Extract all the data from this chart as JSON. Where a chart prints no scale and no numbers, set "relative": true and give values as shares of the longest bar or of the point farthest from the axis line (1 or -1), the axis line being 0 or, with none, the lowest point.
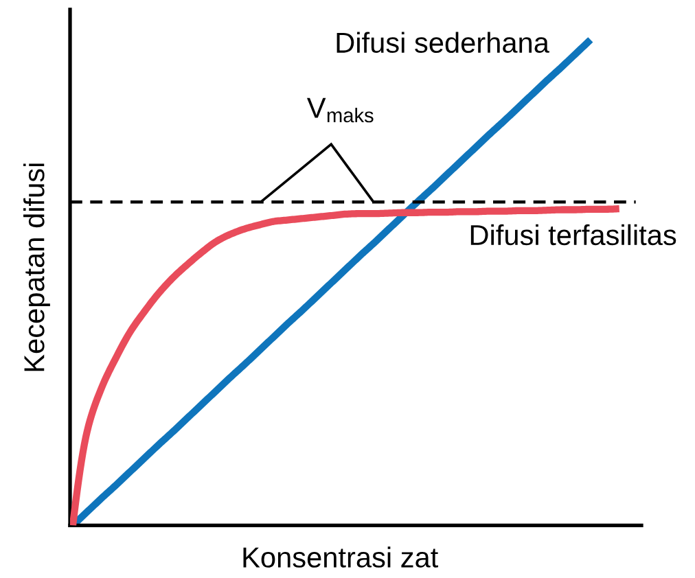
{
  "chart_data": {
    "type": "line",
    "xlabel": "Konsentrasi zat",
    "ylabel": "Kecepatan difusi",
    "relative": true,
    "categories": [
      null,
      null,
      null,
      null,
      null,
      null,
      null,
      null,
      null,
      null,
      null,
      null,
      null,
      null,
      null,
      null,
      null,
      null,
      null,
      null,
      null,
      null,
      null,
      null,
      null,
      null,
      null,
      null,
      null,
      null,
      null,
      null,
      null,
      null,
      null,
      null,
      null,
      null,
      null
    ],
    "series": [
      {
        "name": "Difusi sederhana",
        "color": "#0f75bc",
        "values": [
          0,
          0.028,
          0.056,
          0.083,
          0.111,
          0.139,
          0.167,
          0.194,
          0.222,
          0.25,
          0.278,
          0.306,
          0.333,
          0.361,
          0.389,
          0.417,
          0.444,
          0.472,
          0.5,
          0.528,
          0.556,
          0.583,
          0.611,
          0.639,
          0.667,
          0.694,
          0.722,
          0.75,
          0.778,
          0.806,
          0.833,
          0.861,
          0.889,
          0.917,
          0.944,
          0.972,
          1,
          null,
          null
        ]
      },
      {
        "name": "Difusi terfasilitas",
        "color": "#e94c5b",
        "values": [
          0,
          0.194,
          0.283,
          0.345,
          0.399,
          0.441,
          0.479,
          0.511,
          0.538,
          0.563,
          0.585,
          0.6,
          0.611,
          0.619,
          0.626,
          0.629,
          0.632,
          0.635,
          0.638,
          0.641,
          0.642,
          0.642,
          0.643,
          0.644,
          0.644,
          0.645,
          0.645,
          0.646,
          0.646,
          0.647,
          0.647,
          0.648,
          0.648,
          0.649,
          0.65,
          0.65,
          0.651,
          0.651,
          0.652
        ]
      }
    ],
    "ref_lines": [
      {
        "axis": "y",
        "value": 0.666,
        "label": "V$_{maks}$",
        "color": "#000000",
        "line_style": "dashed"
      }
    ]
  }
}
